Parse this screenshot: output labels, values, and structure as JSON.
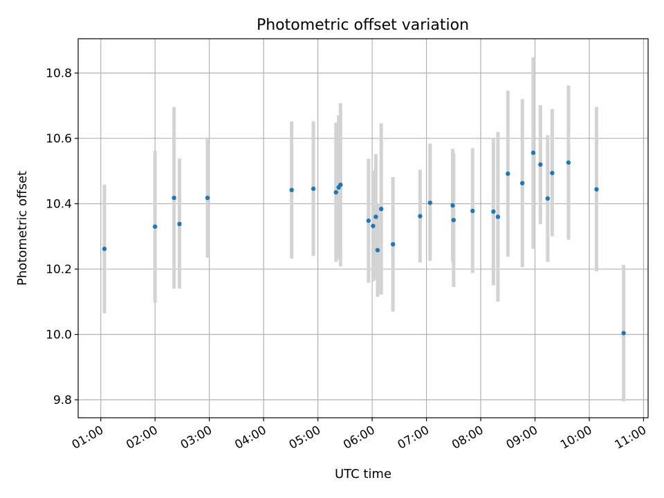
{
  "chart_data": {
    "type": "scatter",
    "title": "Photometric offset variation",
    "xlabel": "UTC time",
    "ylabel": "Photometric offset",
    "x_ticks": [
      "01:00",
      "02:00",
      "03:00",
      "04:00",
      "05:00",
      "06:00",
      "07:00",
      "08:00",
      "09:00",
      "10:00",
      "11:00"
    ],
    "y_ticks": [
      "9.8",
      "10.0",
      "10.2",
      "10.4",
      "10.6",
      "10.8"
    ],
    "xlim": [
      "00:35",
      "11:05"
    ],
    "ylim": [
      9.745,
      10.905
    ],
    "grid": true,
    "colors": {
      "point": "#1f77b4",
      "errorbar": "#d3d3d3",
      "grid": "#b0b0b0"
    },
    "points": [
      {
        "x": "01:04",
        "y": 10.262,
        "err_low": 10.065,
        "err_high": 10.458
      },
      {
        "x": "02:00",
        "y": 10.33,
        "err_low": 10.097,
        "err_high": 10.562
      },
      {
        "x": "02:21",
        "y": 10.418,
        "err_low": 10.14,
        "err_high": 10.696
      },
      {
        "x": "02:27",
        "y": 10.338,
        "err_low": 10.14,
        "err_high": 10.538
      },
      {
        "x": "02:58",
        "y": 10.418,
        "err_low": 10.235,
        "err_high": 10.6
      },
      {
        "x": "04:31",
        "y": 10.442,
        "err_low": 10.232,
        "err_high": 10.652
      },
      {
        "x": "04:55",
        "y": 10.446,
        "err_low": 10.24,
        "err_high": 10.652
      },
      {
        "x": "05:20",
        "y": 10.435,
        "err_low": 10.222,
        "err_high": 10.648
      },
      {
        "x": "05:23",
        "y": 10.45,
        "err_low": 10.23,
        "err_high": 10.67
      },
      {
        "x": "05:25",
        "y": 10.458,
        "err_low": 10.208,
        "err_high": 10.708
      },
      {
        "x": "05:56",
        "y": 10.348,
        "err_low": 10.158,
        "err_high": 10.538
      },
      {
        "x": "06:01",
        "y": 10.332,
        "err_low": 10.162,
        "err_high": 10.502
      },
      {
        "x": "06:04",
        "y": 10.36,
        "err_low": 10.168,
        "err_high": 10.552
      },
      {
        "x": "06:06",
        "y": 10.258,
        "err_low": 10.115,
        "err_high": 10.401
      },
      {
        "x": "06:10",
        "y": 10.384,
        "err_low": 10.122,
        "err_high": 10.646
      },
      {
        "x": "06:23",
        "y": 10.276,
        "err_low": 10.07,
        "err_high": 10.482
      },
      {
        "x": "06:53",
        "y": 10.362,
        "err_low": 10.22,
        "err_high": 10.504
      },
      {
        "x": "07:04",
        "y": 10.403,
        "err_low": 10.225,
        "err_high": 10.584
      },
      {
        "x": "07:29",
        "y": 10.395,
        "err_low": 10.222,
        "err_high": 10.568
      },
      {
        "x": "07:30",
        "y": 10.35,
        "err_low": 10.145,
        "err_high": 10.555
      },
      {
        "x": "07:51",
        "y": 10.378,
        "err_low": 10.188,
        "err_high": 10.57
      },
      {
        "x": "08:14",
        "y": 10.376,
        "err_low": 10.15,
        "err_high": 10.602
      },
      {
        "x": "08:19",
        "y": 10.36,
        "err_low": 10.1,
        "err_high": 10.62
      },
      {
        "x": "08:30",
        "y": 10.492,
        "err_low": 10.238,
        "err_high": 10.746
      },
      {
        "x": "08:46",
        "y": 10.463,
        "err_low": 10.206,
        "err_high": 10.72
      },
      {
        "x": "08:58",
        "y": 10.556,
        "err_low": 10.262,
        "err_high": 10.848
      },
      {
        "x": "09:06",
        "y": 10.52,
        "err_low": 10.338,
        "err_high": 10.702
      },
      {
        "x": "09:14",
        "y": 10.416,
        "err_low": 10.222,
        "err_high": 10.61
      },
      {
        "x": "09:19",
        "y": 10.494,
        "err_low": 10.3,
        "err_high": 10.69
      },
      {
        "x": "09:37",
        "y": 10.526,
        "err_low": 10.29,
        "err_high": 10.762
      },
      {
        "x": "10:08",
        "y": 10.444,
        "err_low": 10.193,
        "err_high": 10.696
      },
      {
        "x": "10:38",
        "y": 10.004,
        "err_low": 9.795,
        "err_high": 10.213
      }
    ]
  }
}
